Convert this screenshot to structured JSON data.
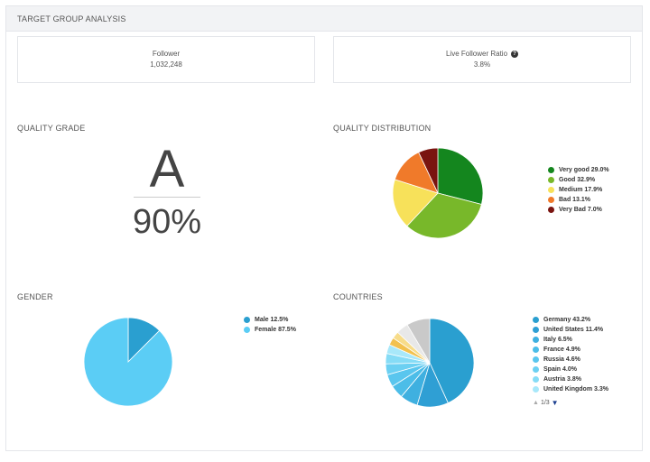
{
  "panel": {
    "title": "TARGET GROUP ANALYSIS"
  },
  "stats": {
    "follower": {
      "label": "Follower",
      "value": "1,032,248"
    },
    "live_ratio": {
      "label": "Live Follower Ratio",
      "value": "3.8%",
      "help_icon": "question-circle-icon"
    }
  },
  "quality_grade": {
    "title": "QUALITY GRADE",
    "grade": "A",
    "percent": "90%"
  },
  "chart_data": [
    {
      "type": "pie",
      "title": "QUALITY DISTRIBUTION",
      "categories": [
        "Very good",
        "Good",
        "Medium",
        "Bad",
        "Very Bad"
      ],
      "values": [
        29.0,
        32.9,
        17.9,
        13.1,
        7.0
      ],
      "labels": [
        "Very good 29.0%",
        "Good 32.9%",
        "Medium 17.9%",
        "Bad 13.1%",
        "Very Bad 7.0%"
      ],
      "colors": [
        "#14861e",
        "#78b82a",
        "#f7e15a",
        "#f07a2a",
        "#7a1410"
      ],
      "legend": "right"
    },
    {
      "type": "pie",
      "title": "GENDER",
      "categories": [
        "Male",
        "Female"
      ],
      "values": [
        12.5,
        87.5
      ],
      "labels": [
        "Male 12.5%",
        "Female 87.5%"
      ],
      "colors": [
        "#2a9fd0",
        "#5bcdf5"
      ],
      "legend": "right"
    },
    {
      "type": "pie",
      "title": "COUNTRIES",
      "categories": [
        "Germany",
        "United States",
        "Italy",
        "France",
        "Russia",
        "Spain",
        "Austria",
        "United Kingdom",
        "",
        "",
        "",
        ""
      ],
      "values": [
        43.2,
        11.4,
        6.5,
        4.9,
        4.6,
        4.0,
        3.8,
        3.3,
        2.8,
        2.6,
        4.4,
        8.5
      ],
      "labels": [
        "Germany 43.2%",
        "United States 11.4%",
        "Italy 6.5%",
        "France 4.9%",
        "Russia 4.6%",
        "Spain 4.0%",
        "Austria 3.8%",
        "United Kingdom 3.3%"
      ],
      "colors": [
        "#2a9fd0",
        "#2f9fd4",
        "#3fb0e0",
        "#4cbde8",
        "#5ac6ee",
        "#6cd0f2",
        "#86dcf6",
        "#a8e8fa",
        "#f2c14e",
        "#f7dc8a",
        "#e8e8e8",
        "#c9c9c9"
      ],
      "legend": "right",
      "pager": "1/3"
    }
  ]
}
